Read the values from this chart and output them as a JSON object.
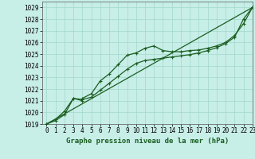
{
  "title": "Graphe pression niveau de la mer (hPa)",
  "bg_color": "#c8eee8",
  "grid_color": "#a0d8cc",
  "line_color": "#1a5e20",
  "xlim": [
    -0.5,
    23
  ],
  "ylim": [
    1019,
    1029.5
  ],
  "xticks": [
    0,
    1,
    2,
    3,
    4,
    5,
    6,
    7,
    8,
    9,
    10,
    11,
    12,
    13,
    14,
    15,
    16,
    17,
    18,
    19,
    20,
    21,
    22,
    23
  ],
  "yticks": [
    1019,
    1020,
    1021,
    1022,
    1023,
    1024,
    1025,
    1026,
    1027,
    1028,
    1029
  ],
  "tick_fontsize": 5.5,
  "title_fontsize": 6.5,
  "series1_x": [
    0,
    1,
    2,
    3,
    4,
    4,
    5,
    6,
    7,
    8,
    9,
    10,
    11,
    12,
    13,
    14,
    15,
    16,
    17,
    18,
    19,
    20,
    21,
    22,
    23
  ],
  "series1_y": [
    1019.0,
    1019.4,
    1020.1,
    1021.2,
    1021.0,
    1021.2,
    1021.6,
    1022.7,
    1023.3,
    1024.1,
    1024.9,
    1025.1,
    1025.5,
    1025.7,
    1025.3,
    1025.2,
    1025.2,
    1025.3,
    1025.35,
    1025.5,
    1025.7,
    1026.0,
    1026.6,
    1027.6,
    1029.0
  ],
  "series2_x": [
    0,
    1,
    2,
    3,
    4,
    5,
    6,
    7,
    8,
    9,
    10,
    11,
    12,
    13,
    14,
    15,
    16,
    17,
    18,
    19,
    20,
    21,
    22,
    23
  ],
  "series2_y": [
    1019.0,
    1019.3,
    1019.8,
    1021.2,
    1021.1,
    1021.3,
    1021.9,
    1022.5,
    1023.1,
    1023.7,
    1024.2,
    1024.45,
    1024.55,
    1024.65,
    1024.75,
    1024.85,
    1024.95,
    1025.1,
    1025.3,
    1025.55,
    1025.9,
    1026.45,
    1028.0,
    1029.0
  ],
  "series3_x": [
    0,
    23
  ],
  "series3_y": [
    1019.0,
    1029.0
  ]
}
